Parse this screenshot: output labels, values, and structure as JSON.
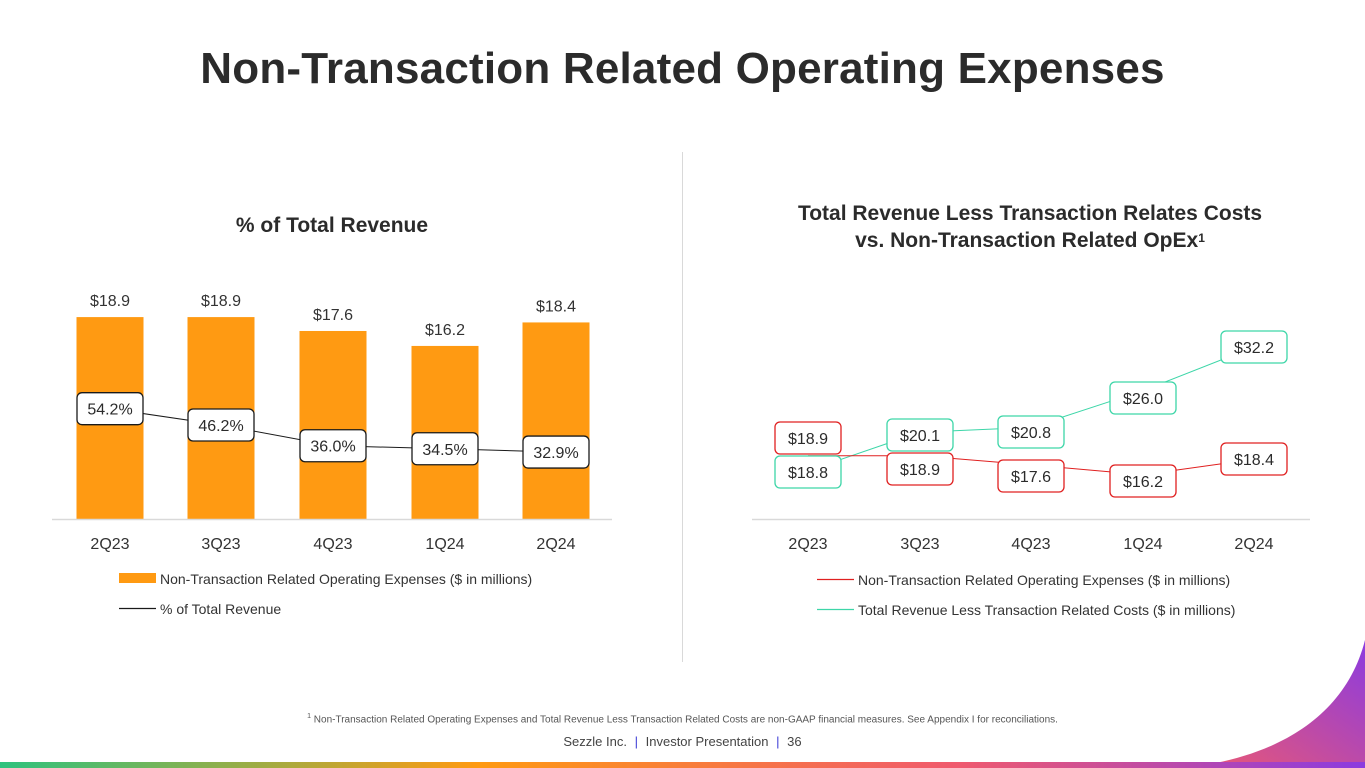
{
  "page": {
    "title": "Non-Transaction Related Operating Expenses",
    "footnote_marker": "1",
    "footnote": "Non-Transaction Related Operating Expenses and Total Revenue Less Transaction Related Costs are non-GAAP financial measures. See Appendix I for reconciliations.",
    "footer_company": "Sezzle Inc.",
    "footer_doc": "Investor Presentation",
    "footer_page": "36",
    "footer_sep": "|"
  },
  "colors": {
    "bar": "#FF9A12",
    "line_black": "#1a1a1a",
    "red": "#E02020",
    "teal": "#3DD6A8",
    "axis": "#d9d9d9",
    "gradient": [
      "#2EC27E",
      "#FF9A12",
      "#F05A6E",
      "#8B3BE0"
    ]
  },
  "chart_data": [
    {
      "type": "bar",
      "title": "% of Total Revenue",
      "categories": [
        "2Q23",
        "3Q23",
        "4Q23",
        "1Q24",
        "2Q24"
      ],
      "series": [
        {
          "name": "Non-Transaction Related Operating Expenses ($ in millions)",
          "kind": "bar",
          "values": [
            18.9,
            18.9,
            17.6,
            16.2,
            18.4
          ],
          "labels": [
            "$18.9",
            "$18.9",
            "$17.6",
            "$16.2",
            "$18.4"
          ]
        },
        {
          "name": "% of Total Revenue",
          "kind": "line",
          "values": [
            54.2,
            46.2,
            36.0,
            34.5,
            32.9
          ],
          "labels": [
            "54.2%",
            "46.2%",
            "36.0%",
            "34.5%",
            "32.9%"
          ]
        }
      ],
      "ylim": [
        0,
        20.5
      ],
      "pct_ylim": [
        0,
        100
      ],
      "legend_position": "bottom"
    },
    {
      "type": "line",
      "title_line1": "Total Revenue Less Transaction Relates Costs",
      "title_line2": "vs. Non-Transaction Related OpEx",
      "title_sup": "1",
      "categories": [
        "2Q23",
        "3Q23",
        "4Q23",
        "1Q24",
        "2Q24"
      ],
      "series": [
        {
          "name": "Non-Transaction Related Operating Expenses ($ in millions)",
          "color": "red",
          "values": [
            18.9,
            18.9,
            17.6,
            16.2,
            18.4
          ],
          "labels": [
            "$18.9",
            "$18.9",
            "$17.6",
            "$16.2",
            "$18.4"
          ]
        },
        {
          "name": "Total Revenue Less Transaction Related Costs ($ in millions)",
          "color": "teal",
          "values": [
            18.8,
            20.1,
            20.8,
            26.0,
            32.2
          ],
          "labels": [
            "$18.8",
            "$20.1",
            "$20.8",
            "$26.0",
            "$32.2"
          ]
        }
      ],
      "ylim": [
        0,
        37
      ],
      "legend_position": "bottom"
    }
  ]
}
